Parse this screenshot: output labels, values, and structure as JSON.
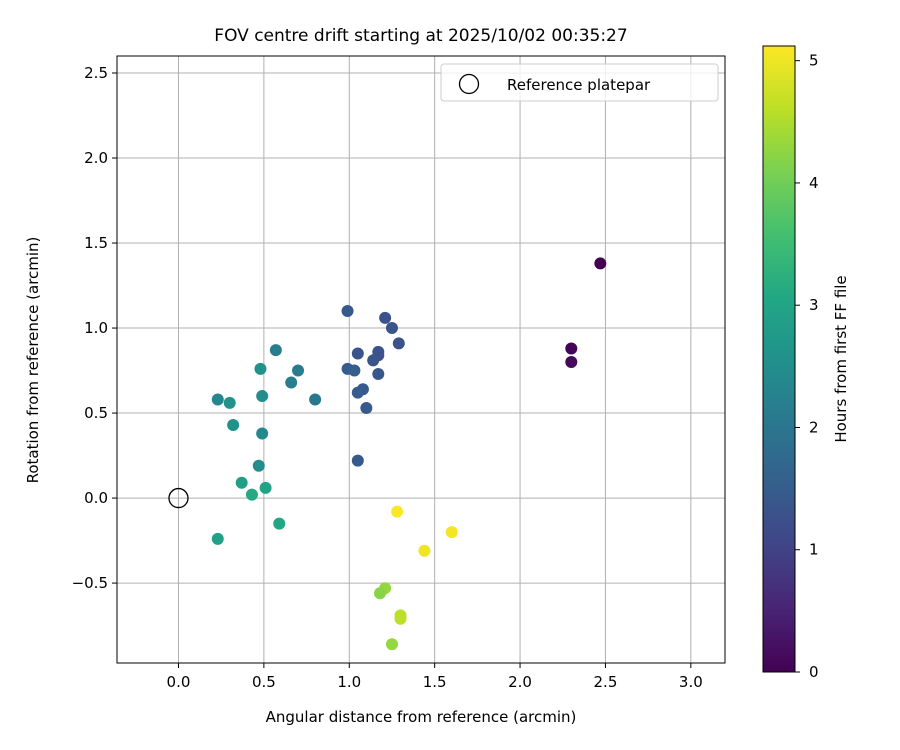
{
  "chart_data": {
    "type": "scatter",
    "title": "FOV centre drift starting at 2025/10/02 00:35:27",
    "xlabel": "Angular distance from reference (arcmin)",
    "ylabel": "Rotation from reference (arcmin)",
    "xlim": [
      -0.36,
      3.2
    ],
    "ylim": [
      -0.97,
      2.6
    ],
    "xticks": [
      0.0,
      0.5,
      1.0,
      1.5,
      2.0,
      2.5,
      3.0
    ],
    "xtick_labels": [
      "0.0",
      "0.5",
      "1.0",
      "1.5",
      "2.0",
      "2.5",
      "3.0"
    ],
    "yticks": [
      -0.5,
      0.0,
      0.5,
      1.0,
      1.5,
      2.0,
      2.5
    ],
    "ytick_labels": [
      "−0.5",
      "0.0",
      "0.5",
      "1.0",
      "1.5",
      "2.0",
      "2.5"
    ],
    "grid": true,
    "legend": {
      "position": "top-right",
      "entries": [
        "Reference platepar"
      ]
    },
    "reference_point": {
      "x": 0.0,
      "y": 0.0,
      "label": "Reference platepar"
    },
    "colorbar": {
      "label": "Hours from first FF file",
      "min": 0,
      "max": 5.12,
      "ticks": [
        0,
        1,
        2,
        3,
        4,
        5
      ],
      "tick_labels": [
        "0",
        "1",
        "2",
        "3",
        "4",
        "5"
      ],
      "colormap": "viridis"
    },
    "points": [
      {
        "x": 2.47,
        "y": 1.38,
        "hours": 0.0
      },
      {
        "x": 2.3,
        "y": 0.88,
        "hours": 0.05
      },
      {
        "x": 2.3,
        "y": 0.8,
        "hours": 0.1
      },
      {
        "x": 0.99,
        "y": 1.1,
        "hours": 1.45
      },
      {
        "x": 1.21,
        "y": 1.06,
        "hours": 1.3
      },
      {
        "x": 1.25,
        "y": 1.0,
        "hours": 1.35
      },
      {
        "x": 1.29,
        "y": 0.91,
        "hours": 1.3
      },
      {
        "x": 1.17,
        "y": 0.86,
        "hours": 1.3
      },
      {
        "x": 1.05,
        "y": 0.85,
        "hours": 1.35
      },
      {
        "x": 1.17,
        "y": 0.84,
        "hours": 1.3
      },
      {
        "x": 1.14,
        "y": 0.81,
        "hours": 1.35
      },
      {
        "x": 0.99,
        "y": 0.76,
        "hours": 1.5
      },
      {
        "x": 1.03,
        "y": 0.75,
        "hours": 1.55
      },
      {
        "x": 1.17,
        "y": 0.73,
        "hours": 1.4
      },
      {
        "x": 1.08,
        "y": 0.64,
        "hours": 1.45
      },
      {
        "x": 1.05,
        "y": 0.62,
        "hours": 1.5
      },
      {
        "x": 1.1,
        "y": 0.53,
        "hours": 1.45
      },
      {
        "x": 1.05,
        "y": 0.22,
        "hours": 1.45
      },
      {
        "x": 0.57,
        "y": 0.87,
        "hours": 2.2
      },
      {
        "x": 0.7,
        "y": 0.75,
        "hours": 2.1
      },
      {
        "x": 0.48,
        "y": 0.76,
        "hours": 2.55
      },
      {
        "x": 0.66,
        "y": 0.68,
        "hours": 2.15
      },
      {
        "x": 0.8,
        "y": 0.58,
        "hours": 2.05
      },
      {
        "x": 0.49,
        "y": 0.6,
        "hours": 2.45
      },
      {
        "x": 0.23,
        "y": 0.58,
        "hours": 2.35
      },
      {
        "x": 0.3,
        "y": 0.56,
        "hours": 2.6
      },
      {
        "x": 0.32,
        "y": 0.43,
        "hours": 2.55
      },
      {
        "x": 0.49,
        "y": 0.38,
        "hours": 2.4
      },
      {
        "x": 0.47,
        "y": 0.19,
        "hours": 2.45
      },
      {
        "x": 0.37,
        "y": 0.09,
        "hours": 2.85
      },
      {
        "x": 0.51,
        "y": 0.06,
        "hours": 2.95
      },
      {
        "x": 0.43,
        "y": 0.02,
        "hours": 3.1
      },
      {
        "x": 0.59,
        "y": -0.15,
        "hours": 3.05
      },
      {
        "x": 0.23,
        "y": -0.24,
        "hours": 2.9
      },
      {
        "x": 1.28,
        "y": -0.08,
        "hours": 5.1
      },
      {
        "x": 1.6,
        "y": -0.2,
        "hours": 5.05
      },
      {
        "x": 1.44,
        "y": -0.31,
        "hours": 5.0
      },
      {
        "x": 1.21,
        "y": -0.53,
        "hours": 4.3
      },
      {
        "x": 1.18,
        "y": -0.56,
        "hours": 4.2
      },
      {
        "x": 1.3,
        "y": -0.69,
        "hours": 4.6
      },
      {
        "x": 1.3,
        "y": -0.71,
        "hours": 4.6
      },
      {
        "x": 1.25,
        "y": -0.86,
        "hours": 4.3
      }
    ]
  }
}
